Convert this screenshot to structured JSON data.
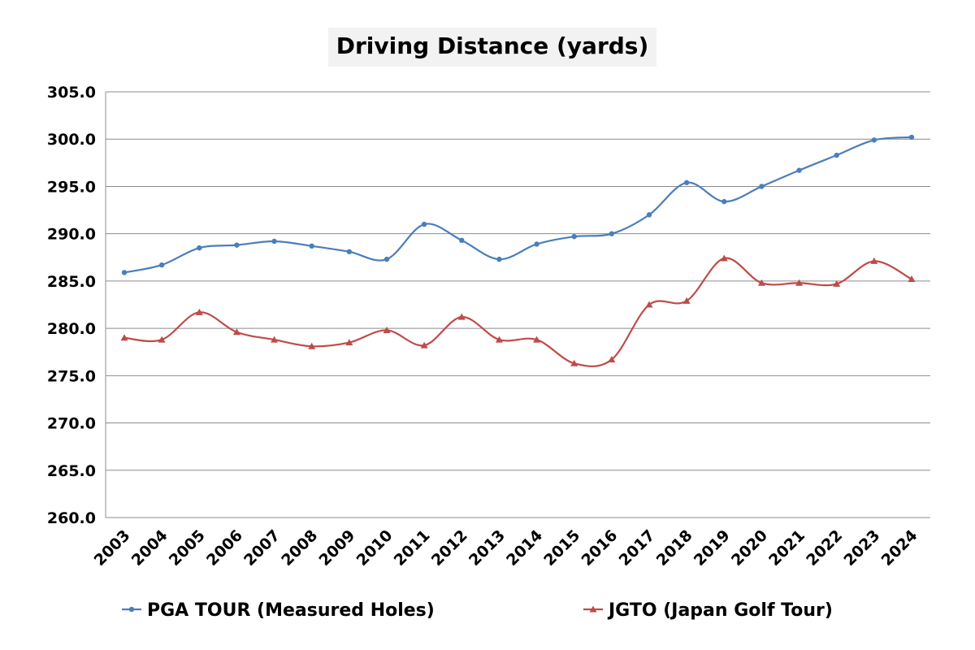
{
  "chart_data": {
    "type": "line",
    "title": "Driving Distance (yards)",
    "xlabel": "",
    "ylabel": "",
    "ylim": [
      260,
      305
    ],
    "y_ticks": [
      "260.0",
      "265.0",
      "270.0",
      "275.0",
      "280.0",
      "285.0",
      "290.0",
      "295.0",
      "300.0",
      "305.0"
    ],
    "categories": [
      "2003",
      "2004",
      "2005",
      "2006",
      "2007",
      "2008",
      "2009",
      "2010",
      "2011",
      "2012",
      "2013",
      "2014",
      "2015",
      "2016",
      "2017",
      "2018",
      "2019",
      "2020",
      "2021",
      "2022",
      "2023",
      "2024"
    ],
    "grid": true,
    "smooth": true,
    "legend_position": "bottom",
    "series": [
      {
        "name": "PGA TOUR (Measured Holes)",
        "color": "#4a7ebb",
        "marker": "circle",
        "values": [
          285.9,
          286.7,
          288.5,
          288.8,
          289.2,
          288.7,
          288.1,
          287.3,
          291.0,
          289.3,
          287.3,
          288.9,
          289.7,
          290.0,
          292.0,
          295.4,
          293.4,
          295.0,
          296.7,
          298.3,
          299.9,
          300.2
        ]
      },
      {
        "name": "JGTO (Japan Golf Tour)",
        "color": "#be4b48",
        "marker": "triangle",
        "values": [
          279.0,
          278.8,
          281.7,
          279.6,
          278.8,
          278.1,
          278.5,
          279.8,
          278.2,
          281.2,
          278.8,
          278.8,
          276.3,
          276.7,
          282.5,
          282.9,
          287.4,
          284.8,
          284.8,
          284.7,
          287.1,
          285.2
        ]
      }
    ]
  }
}
